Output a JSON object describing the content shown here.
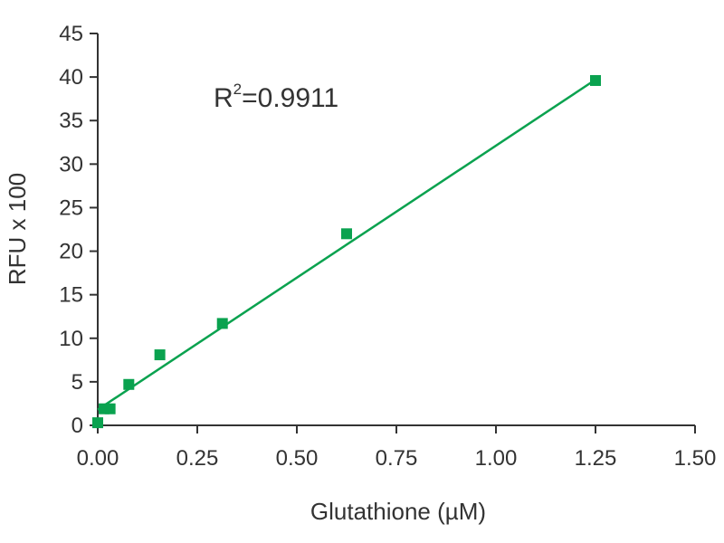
{
  "chart_data": {
    "type": "scatter",
    "xlabel": "Glutathione (µM)",
    "ylabel": "RFU x 100",
    "xlim": [
      0,
      1.5
    ],
    "ylim": [
      0,
      45
    ],
    "x_ticks": [
      "0.00",
      "0.25",
      "0.50",
      "0.75",
      "1.00",
      "1.25",
      "1.50"
    ],
    "y_ticks": [
      "0",
      "5",
      "10",
      "15",
      "20",
      "25",
      "30",
      "35",
      "40",
      "45"
    ],
    "grid": false,
    "colors": {
      "series": "#0aa24f",
      "axis": "#333333"
    },
    "series": [
      {
        "x": [
          0.0,
          0.016,
          0.031,
          0.078,
          0.156,
          0.313,
          0.625,
          1.25
        ],
        "y": [
          0.3,
          1.9,
          1.9,
          4.7,
          8.1,
          11.7,
          22.0,
          39.6
        ]
      }
    ],
    "fit_line": {
      "x": [
        0.0,
        1.25
      ],
      "y": [
        1.8,
        39.7
      ]
    },
    "annotation": {
      "base": "R",
      "sup": "2",
      "rest": "=0.9911"
    }
  }
}
